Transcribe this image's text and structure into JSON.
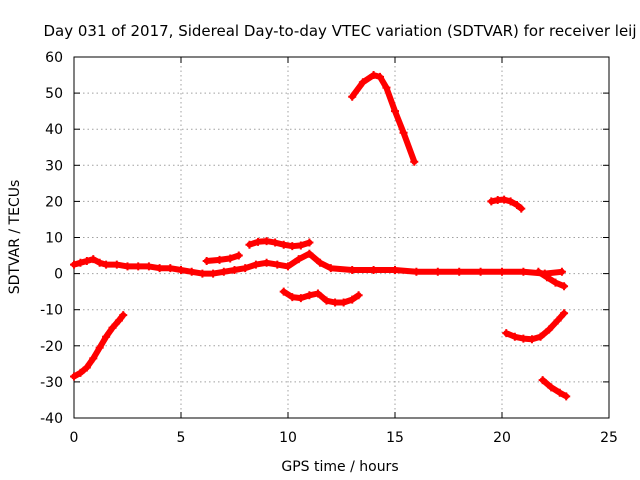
{
  "chart_data": {
    "type": "scatter",
    "title": "Day 031 of 2017, Sidereal Day-to-day VTEC variation (SDTVAR) for receiver leij",
    "xlabel": "GPS time / hours",
    "ylabel": "SDTVAR / TECUs",
    "xlim": [
      0,
      25
    ],
    "ylim": [
      -40,
      60
    ],
    "xticks": [
      "0",
      "5",
      "10",
      "15",
      "20",
      "25"
    ],
    "xtick_values": [
      0,
      5,
      10,
      15,
      20,
      25
    ],
    "yticks": [
      "60",
      "50",
      "40",
      "30",
      "20",
      "10",
      "0",
      "-10",
      "-20",
      "-30",
      "-40"
    ],
    "ytick_values": [
      60,
      50,
      40,
      30,
      20,
      10,
      0,
      -10,
      -20,
      -30,
      -40
    ],
    "grid": true,
    "color": "#ff0000",
    "series": [
      {
        "name": "main-trace",
        "x": [
          0,
          0.3,
          0.6,
          0.9,
          1.2,
          1.5,
          2.0,
          2.5,
          3.0,
          3.5,
          4.0,
          4.5,
          5.0,
          5.5,
          6.0,
          6.5,
          7.0,
          7.5,
          8.0,
          8.5,
          9.0,
          9.5,
          10.0,
          10.5,
          11.0,
          11.5,
          12.0,
          13.0,
          14.0,
          15.0,
          16.0,
          17.0,
          18.0,
          19.0,
          20.0,
          21.0,
          22.0,
          22.8
        ],
        "y": [
          2.5,
          3,
          3.5,
          4,
          3,
          2.5,
          2.5,
          2,
          2,
          2,
          1.5,
          1.5,
          1,
          0.5,
          0,
          0,
          0.5,
          1,
          1.5,
          2.5,
          3,
          2.5,
          2,
          4,
          5.5,
          3,
          1.5,
          1,
          1,
          1,
          0.5,
          0.5,
          0.5,
          0.5,
          0.5,
          0.5,
          0,
          0.5
        ]
      },
      {
        "name": "early-arc",
        "x": [
          0,
          0.3,
          0.6,
          0.9,
          1.2,
          1.5,
          1.8,
          2.1,
          2.3
        ],
        "y": [
          -28.5,
          -27.5,
          -26,
          -23.5,
          -20.5,
          -17.5,
          -15,
          -13,
          -11.5
        ]
      },
      {
        "name": "short-rise",
        "x": [
          6.2,
          6.8,
          7.3,
          7.7
        ],
        "y": [
          3.5,
          3.8,
          4.2,
          5
        ]
      },
      {
        "name": "upper-hump",
        "x": [
          8.2,
          8.6,
          9.0,
          9.4,
          9.8,
          10.2,
          10.6,
          11.0
        ],
        "y": [
          8,
          8.8,
          9,
          8.6,
          8,
          7.6,
          7.8,
          8.6
        ]
      },
      {
        "name": "lower-dip",
        "x": [
          9.8,
          10.2,
          10.6,
          11.0,
          11.4,
          11.8,
          12.2,
          12.6,
          13.0,
          13.3
        ],
        "y": [
          -5,
          -6.5,
          -6.8,
          -6,
          -5.5,
          -7.5,
          -8,
          -8,
          -7.2,
          -6
        ]
      },
      {
        "name": "evening-peak",
        "x": [
          13.0,
          13.5,
          14.0,
          14.3,
          14.6,
          15.0,
          15.4,
          15.9
        ],
        "y": [
          49,
          53,
          55,
          54.5,
          51.5,
          45,
          39,
          31
        ]
      },
      {
        "name": "late-hump",
        "x": [
          19.5,
          19.8,
          20.1,
          20.4,
          20.7,
          20.9
        ],
        "y": [
          20,
          20.4,
          20.5,
          20,
          19,
          18
        ]
      },
      {
        "name": "late-dip",
        "x": [
          20.2,
          20.6,
          21.0,
          21.4,
          21.8,
          22.2,
          22.6,
          22.9
        ],
        "y": [
          -16.5,
          -17.5,
          -18,
          -18.2,
          -17.5,
          -15.5,
          -13,
          -11
        ]
      },
      {
        "name": "late-descent",
        "x": [
          21.9,
          22.3,
          22.7,
          23.0
        ],
        "y": [
          -29.5,
          -31.5,
          -33,
          -34
        ]
      },
      {
        "name": "late-fan",
        "x": [
          21.7,
          22.1,
          22.5,
          22.9
        ],
        "y": [
          0.5,
          -1,
          -2.5,
          -3.5
        ]
      }
    ]
  }
}
